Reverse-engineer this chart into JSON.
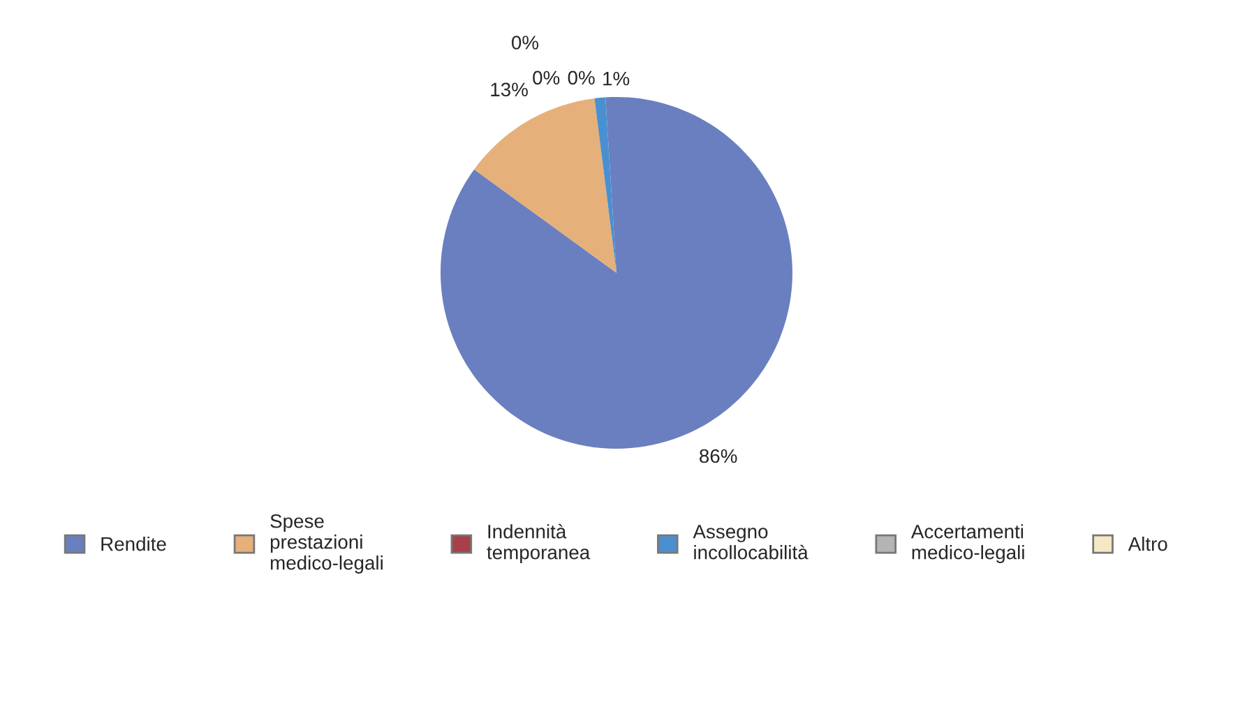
{
  "chart_data": {
    "type": "pie",
    "categories": [
      "Rendite",
      "Spese prestazioni medico-legali",
      "Indennità temporanea",
      "Assegno incollocabilità",
      "Accertamenti medico-legali",
      "Altro"
    ],
    "values": [
      86,
      13,
      0,
      1,
      0,
      0
    ],
    "value_labels": [
      "86%",
      "13%",
      "0%",
      "1%",
      "0%",
      "0%"
    ],
    "colors": [
      "#6a7fbf",
      "#e6b07a",
      "#a8404a",
      "#4a90d0",
      "#b4b4b4",
      "#f6e8c4"
    ],
    "legend": "bottom"
  }
}
